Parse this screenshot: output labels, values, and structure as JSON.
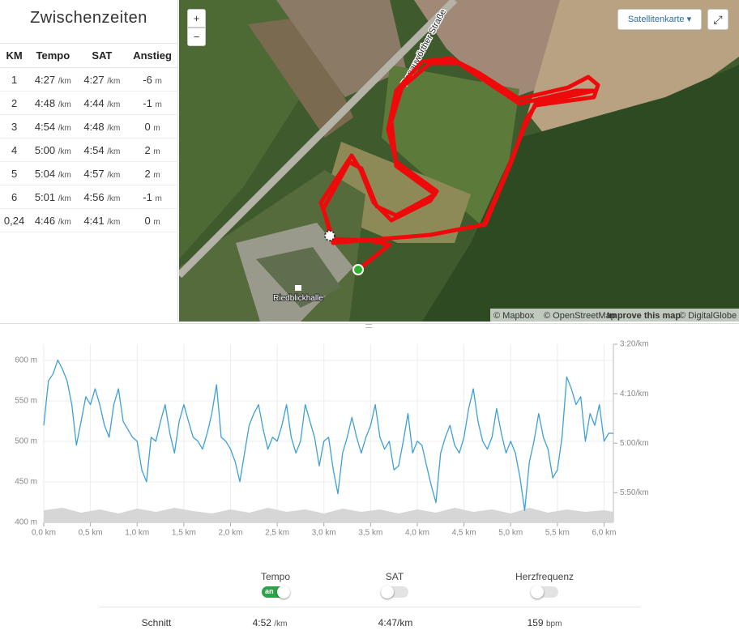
{
  "splits": {
    "title": "Zwischenzeiten",
    "headers": [
      "KM",
      "Tempo",
      "SAT",
      "Anstieg"
    ],
    "units": {
      "pace": "/km",
      "elev": "m"
    },
    "rows": [
      {
        "km": "1",
        "tempo": "4:27",
        "sat": "4:27",
        "anstieg": "-6"
      },
      {
        "km": "2",
        "tempo": "4:48",
        "sat": "4:44",
        "anstieg": "-1"
      },
      {
        "km": "3",
        "tempo": "4:54",
        "sat": "4:48",
        "anstieg": "0"
      },
      {
        "km": "4",
        "tempo": "5:00",
        "sat": "4:54",
        "anstieg": "2"
      },
      {
        "km": "5",
        "tempo": "5:04",
        "sat": "4:57",
        "anstieg": "2"
      },
      {
        "km": "6",
        "tempo": "5:01",
        "sat": "4:56",
        "anstieg": "-1"
      },
      {
        "km": "0,24",
        "tempo": "4:46",
        "sat": "4:41",
        "anstieg": "0"
      }
    ]
  },
  "map": {
    "zoom_in": "+",
    "zoom_out": "−",
    "layer": "Satellitenkarte",
    "road": "Donauwörther Straße",
    "place": "Riedblickhalle",
    "attribution": [
      "© Mapbox",
      "© OpenStreetMap",
      "Improve this map",
      "© DigitalGlobe"
    ]
  },
  "chart_data": {
    "type": "line",
    "xlim": [
      0,
      6.1
    ],
    "xticks": [
      {
        "value": 0,
        "label": "0,0 km"
      },
      {
        "value": 0.5,
        "label": "0,5 km"
      },
      {
        "value": 1,
        "label": "1,0 km"
      },
      {
        "value": 1.5,
        "label": "1,5 km"
      },
      {
        "value": 2,
        "label": "2,0 km"
      },
      {
        "value": 2.5,
        "label": "2,5 km"
      },
      {
        "value": 3,
        "label": "3,0 km"
      },
      {
        "value": 3.5,
        "label": "3,5 km"
      },
      {
        "value": 4,
        "label": "4,0 km"
      },
      {
        "value": 4.5,
        "label": "4,5 km"
      },
      {
        "value": 5,
        "label": "5,0 km"
      },
      {
        "value": 5.5,
        "label": "5,5 km"
      },
      {
        "value": 6,
        "label": "6,0 km"
      }
    ],
    "ylim": [
      400,
      620
    ],
    "yticks": [
      {
        "value": 400,
        "label": "400 m"
      },
      {
        "value": 450,
        "label": "450 m"
      },
      {
        "value": 500,
        "label": "500 m"
      },
      {
        "value": 550,
        "label": "550 m"
      },
      {
        "value": 600,
        "label": "600 m"
      }
    ],
    "y2lim": [
      380,
      200
    ],
    "y2ticks": [
      {
        "value": 200,
        "label": "3:20/km"
      },
      {
        "value": 250,
        "label": "4:10/km"
      },
      {
        "value": 300,
        "label": "5:00/km"
      },
      {
        "value": 350,
        "label": "5:50/km"
      }
    ],
    "grid": true,
    "series": [
      {
        "color": "#d6d6d6",
        "area": true,
        "x": [
          0,
          0.2,
          0.4,
          0.6,
          0.8,
          1,
          1.2,
          1.4,
          1.6,
          1.8,
          2,
          2.2,
          2.4,
          2.6,
          2.8,
          3,
          3.2,
          3.4,
          3.6,
          3.8,
          4,
          4.2,
          4.4,
          4.6,
          4.8,
          5,
          5.2,
          5.4,
          5.6,
          5.8,
          6,
          6.1
        ],
        "values": [
          415,
          418,
          412,
          416,
          411,
          417,
          413,
          418,
          414,
          411,
          416,
          412,
          418,
          413,
          416,
          411,
          417,
          413,
          416,
          411,
          416,
          412,
          418,
          413,
          416,
          411,
          418,
          412,
          416,
          413,
          415,
          413
        ]
      },
      {
        "color": "#3ea0d6",
        "axis": "y2",
        "x": [
          0,
          0.05,
          0.1,
          0.15,
          0.2,
          0.25,
          0.3,
          0.35,
          0.4,
          0.45,
          0.5,
          0.55,
          0.6,
          0.65,
          0.7,
          0.75,
          0.8,
          0.85,
          0.9,
          0.95,
          1,
          1.05,
          1.1,
          1.15,
          1.2,
          1.25,
          1.3,
          1.35,
          1.4,
          1.45,
          1.5,
          1.55,
          1.6,
          1.65,
          1.7,
          1.75,
          1.8,
          1.85,
          1.9,
          1.95,
          2,
          2.05,
          2.1,
          2.15,
          2.2,
          2.25,
          2.3,
          2.35,
          2.4,
          2.45,
          2.5,
          2.55,
          2.6,
          2.65,
          2.7,
          2.75,
          2.8,
          2.85,
          2.9,
          2.95,
          3,
          3.05,
          3.1,
          3.15,
          3.2,
          3.25,
          3.3,
          3.35,
          3.4,
          3.45,
          3.5,
          3.55,
          3.6,
          3.65,
          3.7,
          3.75,
          3.8,
          3.85,
          3.9,
          3.95,
          4,
          4.05,
          4.1,
          4.15,
          4.2,
          4.25,
          4.3,
          4.35,
          4.4,
          4.45,
          4.5,
          4.55,
          4.6,
          4.65,
          4.7,
          4.75,
          4.8,
          4.85,
          4.9,
          4.95,
          5,
          5.05,
          5.1,
          5.15,
          5.2,
          5.25,
          5.3,
          5.35,
          5.4,
          5.45,
          5.5,
          5.55,
          5.6,
          5.65,
          5.7,
          5.75,
          5.8,
          5.85,
          5.9,
          5.95,
          6,
          6.05,
          6.1
        ],
        "values": [
          282,
          237,
          230,
          216,
          225,
          237,
          261,
          302,
          278,
          253,
          261,
          245,
          261,
          282,
          294,
          261,
          245,
          278,
          286,
          294,
          298,
          327,
          339,
          294,
          298,
          278,
          261,
          290,
          310,
          278,
          261,
          278,
          294,
          298,
          306,
          290,
          270,
          241,
          294,
          298,
          306,
          319,
          339,
          310,
          282,
          270,
          261,
          286,
          306,
          294,
          298,
          282,
          261,
          294,
          310,
          298,
          261,
          278,
          294,
          323,
          298,
          294,
          327,
          351,
          310,
          294,
          274,
          294,
          310,
          294,
          282,
          261,
          294,
          306,
          298,
          327,
          323,
          298,
          270,
          310,
          298,
          302,
          323,
          343,
          360,
          310,
          294,
          282,
          302,
          310,
          294,
          265,
          245,
          278,
          298,
          306,
          294,
          265,
          290,
          310,
          298,
          310,
          335,
          368,
          319,
          298,
          270,
          294,
          306,
          335,
          327,
          294,
          233,
          245,
          261,
          253,
          298,
          270,
          282,
          261,
          298,
          290,
          290
        ]
      }
    ]
  },
  "controls": {
    "toggles": [
      {
        "label": "Tempo",
        "state_label": "an",
        "on": true
      },
      {
        "label": "SAT",
        "on": false
      },
      {
        "label": "Herzfrequenz",
        "on": false
      }
    ],
    "summary": {
      "label": "Schnitt",
      "tempo": "4:52",
      "tempo_unit": "/km",
      "sat": "4:47/km",
      "hr": "159",
      "hr_unit": "bpm"
    }
  }
}
